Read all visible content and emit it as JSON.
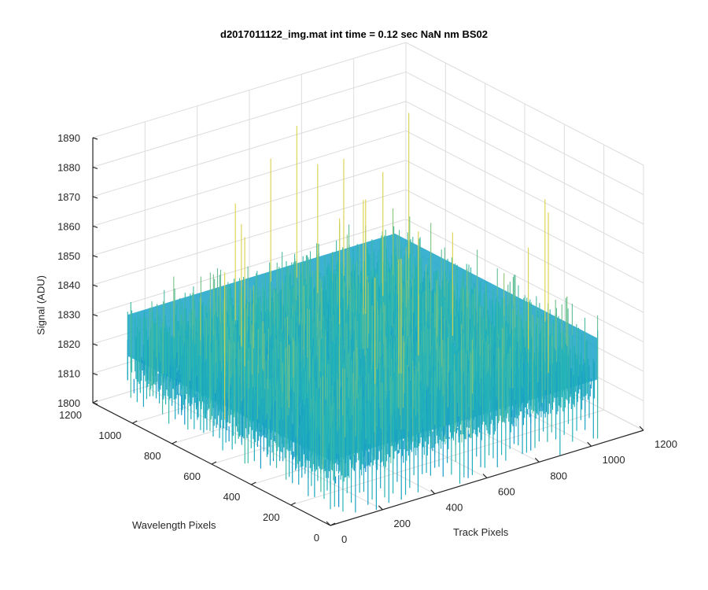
{
  "chart_data": {
    "type": "surface",
    "title": "d2017011122_img.mat int time = 0.12 sec  NaN nm BS02",
    "xlabel": "Track Pixels",
    "ylabel": "Wavelength Pixels",
    "zlabel": "Signal (ADU)",
    "x_ticks": [
      0,
      200,
      400,
      600,
      800,
      1000,
      1200
    ],
    "y_ticks": [
      0,
      200,
      400,
      600,
      800,
      1000,
      1200
    ],
    "z_ticks": [
      1800,
      1810,
      1820,
      1830,
      1840,
      1850,
      1860,
      1870,
      1880,
      1890
    ],
    "xlim": [
      0,
      1200
    ],
    "ylim": [
      0,
      1200
    ],
    "zlim": [
      1800,
      1890
    ],
    "data_extent": {
      "x": [
        0,
        1024
      ],
      "y": [
        0,
        1024
      ]
    },
    "surface": {
      "mean_signal": 1830,
      "noise_range": [
        1808,
        1862
      ],
      "max_spike": 1887,
      "colormap": "parula",
      "low_color": "#0a82d6",
      "mid_color": "#23b4b8",
      "high_color": "#d9d24a"
    },
    "grid": true,
    "view": "3d-perspective"
  }
}
